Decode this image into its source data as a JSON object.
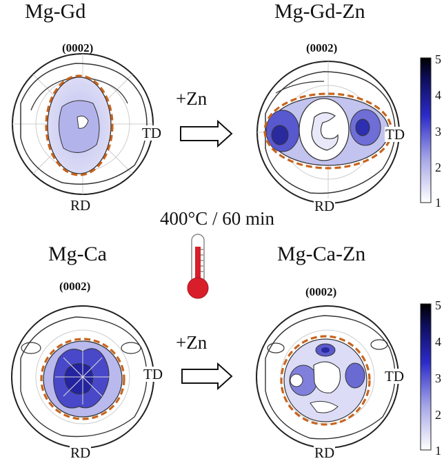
{
  "panels": {
    "tl": {
      "alloy": "Mg-Gd",
      "plane": "(0002)",
      "td": "TD",
      "rd": "RD"
    },
    "tr": {
      "alloy": "Mg-Gd-Zn",
      "plane": "(0002)",
      "td": "TD",
      "rd": "RD"
    },
    "bl": {
      "alloy": "Mg-Ca",
      "plane": "(0002)",
      "td": "TD",
      "rd": "RD"
    },
    "br": {
      "alloy": "Mg-Ca-Zn",
      "plane": "(0002)",
      "td": "TD",
      "rd": "RD"
    }
  },
  "arrows": {
    "top": "+Zn",
    "bottom": "+Zn"
  },
  "condition": "400°C / 60 min",
  "colorbars": {
    "top": {
      "ticks": [
        "5",
        "4",
        "3",
        "2",
        "1"
      ],
      "min": 1,
      "max": 5
    },
    "bottom": {
      "ticks": [
        "5",
        "4",
        "3",
        "2",
        "1"
      ],
      "min": 1,
      "max": 5
    }
  },
  "colors": {
    "dashed_boundary": "#c8641e",
    "colormap_low": "#ffffff",
    "colormap_high": "#000000",
    "colormap_mid": "#1e1ec8",
    "thermometer": "#d81e2a"
  }
}
